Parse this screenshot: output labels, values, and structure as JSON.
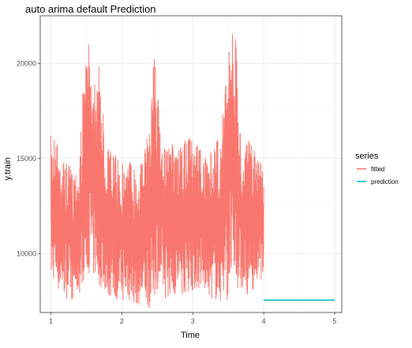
{
  "chart_data": {
    "type": "line",
    "title": "auto arima default Prediction",
    "xlabel": "Time",
    "ylabel": "y.train",
    "xlim": [
      0.85,
      5.1
    ],
    "ylim": [
      6900,
      22500
    ],
    "x_ticks": [
      1,
      2,
      3,
      4,
      5
    ],
    "y_ticks": [
      10000,
      15000,
      20000
    ],
    "grid": true,
    "legend": {
      "title": "series",
      "placement": "right",
      "entries": [
        "fitted",
        "prediction"
      ]
    },
    "series": [
      {
        "name": "fitted",
        "color": "#F8766D",
        "x_range": [
          1,
          4
        ],
        "envelope": {
          "x": [
            1.0,
            1.05,
            1.1,
            1.2,
            1.3,
            1.4,
            1.45,
            1.5,
            1.55,
            1.6,
            1.65,
            1.7,
            1.75,
            1.8,
            1.9,
            2.0,
            2.1,
            2.2,
            2.3,
            2.4,
            2.45,
            2.5,
            2.55,
            2.6,
            2.7,
            2.8,
            2.9,
            3.0,
            3.1,
            3.2,
            3.3,
            3.4,
            3.5,
            3.55,
            3.6,
            3.65,
            3.7,
            3.8,
            3.9,
            4.0
          ],
          "upper": [
            16200,
            16400,
            15800,
            14800,
            14500,
            15000,
            18500,
            20500,
            21200,
            19500,
            20800,
            19000,
            17000,
            15800,
            15200,
            14800,
            15200,
            14600,
            15000,
            17000,
            21300,
            19000,
            16500,
            15500,
            15800,
            15400,
            16000,
            16200,
            15800,
            14800,
            15800,
            16500,
            21000,
            22000,
            21800,
            17500,
            15500,
            16000,
            15200,
            14800
          ],
          "lower": [
            8400,
            8600,
            8000,
            7700,
            7500,
            7800,
            8500,
            8800,
            9000,
            8600,
            8400,
            8200,
            8000,
            7700,
            7600,
            7500,
            7400,
            7300,
            7200,
            7100,
            7600,
            8200,
            7900,
            7600,
            7800,
            7700,
            7900,
            8000,
            8100,
            7800,
            7500,
            7400,
            7600,
            8000,
            8300,
            8000,
            7800,
            7900,
            8300,
            8800
          ]
        }
      },
      {
        "name": "prediction",
        "color": "#00BFC4",
        "x": [
          4,
          5
        ],
        "values": [
          7550,
          7550
        ]
      }
    ]
  },
  "colors": {
    "panel_background": "#ffffff",
    "grid_major": "#ebebeb",
    "grid_minor": "#f5f5f5",
    "panel_border": "#333333",
    "text": "#000000",
    "tick_text": "#4d4d4d"
  }
}
